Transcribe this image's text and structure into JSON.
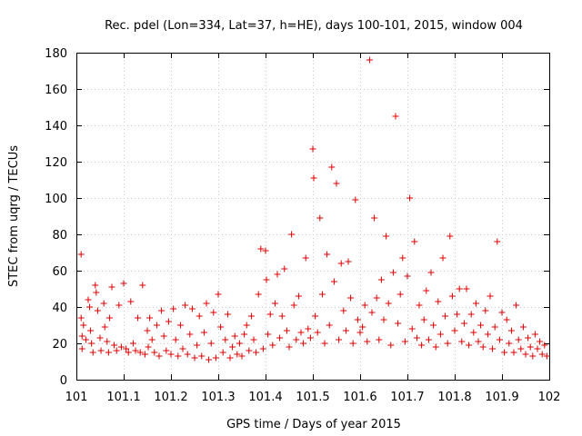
{
  "chart_data": {
    "type": "scatter",
    "title": "Rec. pdel (Lon=334, Lat=37, h=HE), days 100-101, 2015, window 004",
    "xlabel": "GPS time / Days of year 2015",
    "ylabel": "STEC from uqrg / TECUs",
    "xlim": [
      101,
      102
    ],
    "ylim": [
      0,
      180
    ],
    "xticks": [
      "101",
      "101.1",
      "101.2",
      "101.3",
      "101.4",
      "101.5",
      "101.6",
      "101.7",
      "101.8",
      "101.9",
      "102"
    ],
    "yticks": [
      "0",
      "20",
      "40",
      "60",
      "80",
      "100",
      "120",
      "140",
      "160",
      "180"
    ],
    "grid": true,
    "marker": "plus",
    "color": "#dd0000",
    "series": [
      {
        "points": [
          [
            101.01,
            69
          ],
          [
            101.01,
            34
          ],
          [
            101.012,
            24
          ],
          [
            101.012,
            17
          ],
          [
            101.015,
            30
          ],
          [
            101.02,
            22
          ],
          [
            101.025,
            44
          ],
          [
            101.028,
            40
          ],
          [
            101.03,
            27
          ],
          [
            101.032,
            20
          ],
          [
            101.035,
            15
          ],
          [
            101.04,
            52
          ],
          [
            101.042,
            48
          ],
          [
            101.045,
            38
          ],
          [
            101.05,
            23
          ],
          [
            101.052,
            16
          ],
          [
            101.058,
            42
          ],
          [
            101.06,
            29
          ],
          [
            101.065,
            21
          ],
          [
            101.068,
            15
          ],
          [
            101.07,
            34
          ],
          [
            101.075,
            51
          ],
          [
            101.08,
            19
          ],
          [
            101.085,
            16
          ],
          [
            101.09,
            41
          ],
          [
            101.095,
            18
          ],
          [
            101.1,
            53
          ],
          [
            101.105,
            17
          ],
          [
            101.11,
            15
          ],
          [
            101.115,
            43
          ],
          [
            101.12,
            20
          ],
          [
            101.125,
            16
          ],
          [
            101.13,
            34
          ],
          [
            101.135,
            15
          ],
          [
            101.14,
            52
          ],
          [
            101.145,
            14
          ],
          [
            101.15,
            27
          ],
          [
            101.152,
            18
          ],
          [
            101.155,
            34
          ],
          [
            101.16,
            22
          ],
          [
            101.165,
            15
          ],
          [
            101.17,
            30
          ],
          [
            101.175,
            13
          ],
          [
            101.18,
            38
          ],
          [
            101.185,
            24
          ],
          [
            101.19,
            16
          ],
          [
            101.195,
            32
          ],
          [
            101.2,
            14
          ],
          [
            101.205,
            39
          ],
          [
            101.21,
            22
          ],
          [
            101.215,
            13
          ],
          [
            101.22,
            30
          ],
          [
            101.225,
            17
          ],
          [
            101.23,
            41
          ],
          [
            101.235,
            14
          ],
          [
            101.24,
            25
          ],
          [
            101.245,
            39
          ],
          [
            101.25,
            12
          ],
          [
            101.255,
            19
          ],
          [
            101.26,
            35
          ],
          [
            101.265,
            13
          ],
          [
            101.27,
            26
          ],
          [
            101.275,
            42
          ],
          [
            101.28,
            11
          ],
          [
            101.285,
            20
          ],
          [
            101.29,
            37
          ],
          [
            101.295,
            12
          ],
          [
            101.3,
            47
          ],
          [
            101.305,
            29
          ],
          [
            101.31,
            15
          ],
          [
            101.315,
            22
          ],
          [
            101.32,
            36
          ],
          [
            101.325,
            12
          ],
          [
            101.33,
            18
          ],
          [
            101.335,
            24
          ],
          [
            101.34,
            14
          ],
          [
            101.345,
            20
          ],
          [
            101.35,
            13
          ],
          [
            101.355,
            25
          ],
          [
            101.36,
            30
          ],
          [
            101.365,
            16
          ],
          [
            101.37,
            35
          ],
          [
            101.375,
            22
          ],
          [
            101.38,
            15
          ],
          [
            101.385,
            47
          ],
          [
            101.39,
            72
          ],
          [
            101.395,
            17
          ],
          [
            101.4,
            71
          ],
          [
            101.402,
            55
          ],
          [
            101.405,
            25
          ],
          [
            101.41,
            36
          ],
          [
            101.415,
            19
          ],
          [
            101.42,
            42
          ],
          [
            101.425,
            58
          ],
          [
            101.43,
            23
          ],
          [
            101.435,
            35
          ],
          [
            101.44,
            61
          ],
          [
            101.445,
            27
          ],
          [
            101.45,
            18
          ],
          [
            101.455,
            80
          ],
          [
            101.46,
            41
          ],
          [
            101.465,
            22
          ],
          [
            101.47,
            46
          ],
          [
            101.475,
            26
          ],
          [
            101.48,
            20
          ],
          [
            101.485,
            67
          ],
          [
            101.49,
            28
          ],
          [
            101.495,
            23
          ],
          [
            101.5,
            127
          ],
          [
            101.502,
            111
          ],
          [
            101.505,
            35
          ],
          [
            101.51,
            26
          ],
          [
            101.515,
            89
          ],
          [
            101.52,
            47
          ],
          [
            101.525,
            20
          ],
          [
            101.53,
            69
          ],
          [
            101.535,
            30
          ],
          [
            101.54,
            117
          ],
          [
            101.545,
            54
          ],
          [
            101.55,
            108
          ],
          [
            101.555,
            22
          ],
          [
            101.56,
            64
          ],
          [
            101.565,
            38
          ],
          [
            101.57,
            27
          ],
          [
            101.575,
            65
          ],
          [
            101.58,
            45
          ],
          [
            101.585,
            20
          ],
          [
            101.59,
            99
          ],
          [
            101.595,
            33
          ],
          [
            101.6,
            26
          ],
          [
            101.605,
            29
          ],
          [
            101.61,
            41
          ],
          [
            101.615,
            21
          ],
          [
            101.62,
            176
          ],
          [
            101.625,
            37
          ],
          [
            101.63,
            89
          ],
          [
            101.635,
            45
          ],
          [
            101.64,
            22
          ],
          [
            101.645,
            55
          ],
          [
            101.65,
            33
          ],
          [
            101.655,
            79
          ],
          [
            101.66,
            42
          ],
          [
            101.665,
            19
          ],
          [
            101.67,
            59
          ],
          [
            101.675,
            145
          ],
          [
            101.68,
            31
          ],
          [
            101.685,
            47
          ],
          [
            101.69,
            67
          ],
          [
            101.695,
            21
          ],
          [
            101.7,
            57
          ],
          [
            101.705,
            100
          ],
          [
            101.71,
            28
          ],
          [
            101.715,
            76
          ],
          [
            101.72,
            23
          ],
          [
            101.725,
            41
          ],
          [
            101.73,
            19
          ],
          [
            101.735,
            33
          ],
          [
            101.74,
            49
          ],
          [
            101.745,
            22
          ],
          [
            101.75,
            59
          ],
          [
            101.755,
            30
          ],
          [
            101.76,
            18
          ],
          [
            101.765,
            43
          ],
          [
            101.77,
            25
          ],
          [
            101.775,
            67
          ],
          [
            101.78,
            35
          ],
          [
            101.785,
            20
          ],
          [
            101.79,
            79
          ],
          [
            101.795,
            46
          ],
          [
            101.8,
            27
          ],
          [
            101.805,
            36
          ],
          [
            101.81,
            50
          ],
          [
            101.815,
            21
          ],
          [
            101.82,
            31
          ],
          [
            101.825,
            50
          ],
          [
            101.83,
            19
          ],
          [
            101.835,
            36
          ],
          [
            101.84,
            26
          ],
          [
            101.845,
            42
          ],
          [
            101.85,
            21
          ],
          [
            101.855,
            30
          ],
          [
            101.86,
            18
          ],
          [
            101.865,
            38
          ],
          [
            101.87,
            25
          ],
          [
            101.875,
            46
          ],
          [
            101.88,
            17
          ],
          [
            101.885,
            29
          ],
          [
            101.89,
            76
          ],
          [
            101.895,
            22
          ],
          [
            101.9,
            37
          ],
          [
            101.905,
            15
          ],
          [
            101.91,
            33
          ],
          [
            101.915,
            20
          ],
          [
            101.92,
            27
          ],
          [
            101.925,
            15
          ],
          [
            101.93,
            41
          ],
          [
            101.935,
            22
          ],
          [
            101.94,
            17
          ],
          [
            101.945,
            29
          ],
          [
            101.95,
            14
          ],
          [
            101.955,
            23
          ],
          [
            101.96,
            18
          ],
          [
            101.965,
            13
          ],
          [
            101.97,
            25
          ],
          [
            101.975,
            17
          ],
          [
            101.98,
            21
          ],
          [
            101.985,
            14
          ],
          [
            101.99,
            19
          ],
          [
            101.995,
            13
          ]
        ]
      }
    ]
  }
}
